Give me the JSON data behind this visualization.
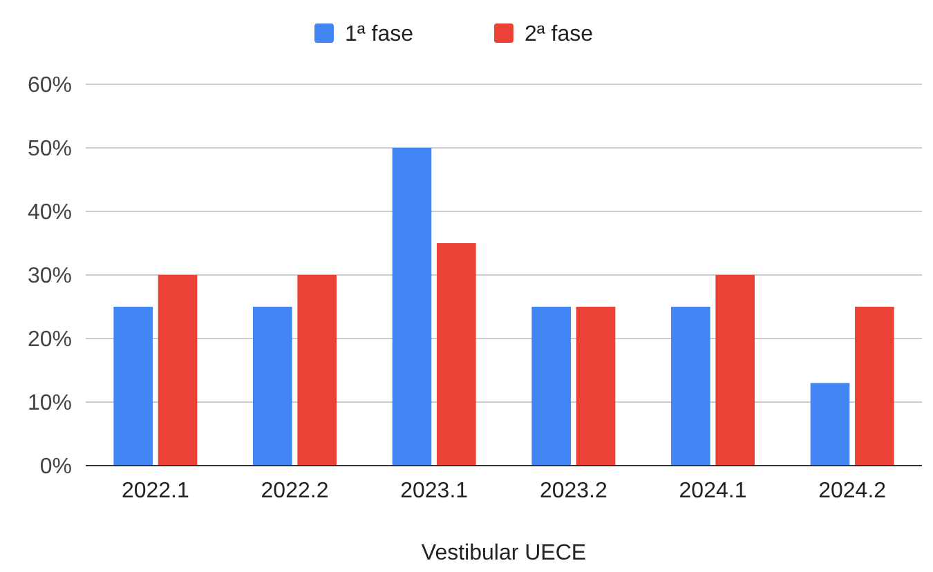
{
  "chart_data": {
    "type": "bar",
    "xlabel": "Vestibular UECE",
    "categories": [
      "2022.1",
      "2022.2",
      "2023.1",
      "2023.2",
      "2024.1",
      "2024.2"
    ],
    "series": [
      {
        "name": "1ª fase",
        "color": "#4285f4",
        "values": [
          25,
          25,
          50,
          25,
          25,
          13
        ]
      },
      {
        "name": "2ª fase",
        "color": "#ea4335",
        "values": [
          30,
          30,
          35,
          25,
          30,
          25
        ]
      }
    ],
    "ylim": [
      0,
      60
    ],
    "yticks": [
      {
        "value": 0,
        "label": "0%"
      },
      {
        "value": 10,
        "label": "10%"
      },
      {
        "value": 20,
        "label": "20%"
      },
      {
        "value": 30,
        "label": "30%"
      },
      {
        "value": 40,
        "label": "40%"
      },
      {
        "value": 50,
        "label": "50%"
      },
      {
        "value": 60,
        "label": "60%"
      }
    ],
    "grid": "y",
    "legend": "top"
  }
}
